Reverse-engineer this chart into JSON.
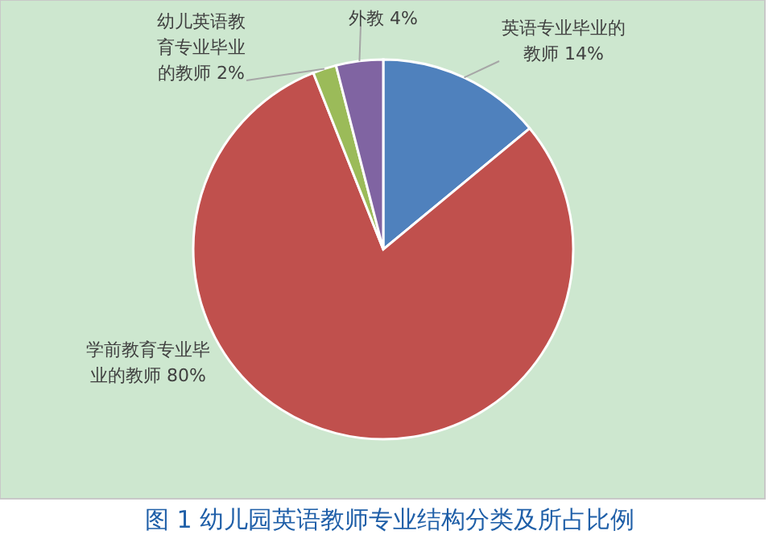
{
  "chart_data": {
    "type": "pie",
    "title": "图 1 幼儿园英语教师专业结构分类及所占比例",
    "categories": [
      "英语专业毕业的教师",
      "学前教育专业毕业的教师",
      "幼儿英语教育专业毕业的教师",
      "外教"
    ],
    "values": [
      14,
      80,
      2,
      4
    ],
    "value_labels": [
      "14%",
      "80%",
      "2%",
      "4%"
    ],
    "colors": [
      "#4f81bd",
      "#c0504d",
      "#9bbb59",
      "#8064a2"
    ],
    "data_labels": true
  }
}
